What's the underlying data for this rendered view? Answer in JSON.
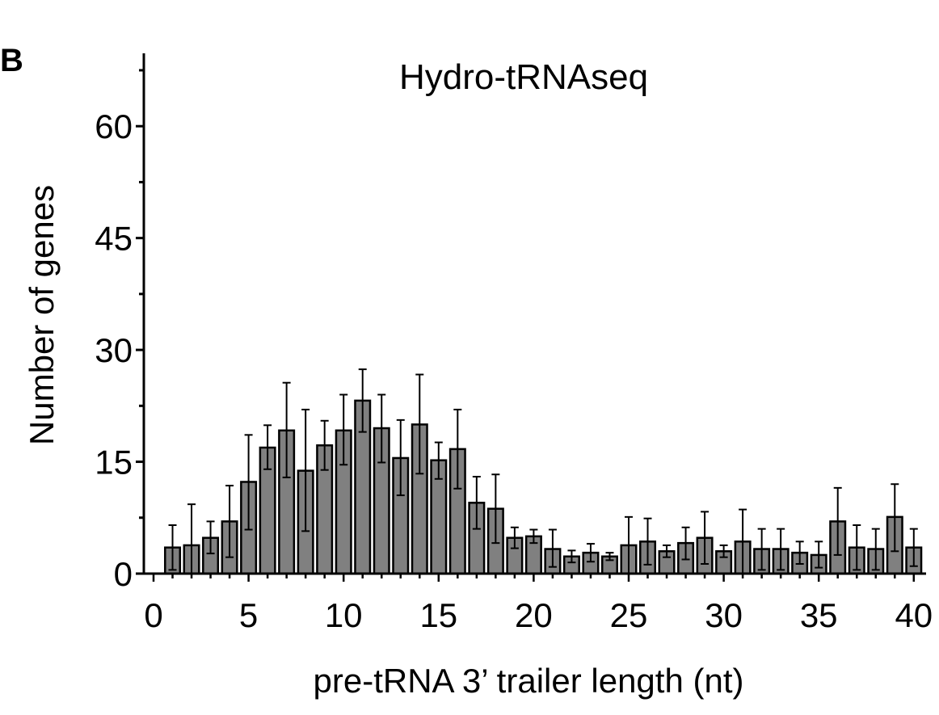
{
  "panel_label": "B",
  "chart_data": {
    "type": "bar",
    "title": "Hydro-tRNAseq",
    "xlabel": "pre-tRNA 3’ trailer length (nt)",
    "ylabel": "Number of genes",
    "xlim": [
      0,
      40
    ],
    "ylim": [
      0,
      70
    ],
    "xticks": [
      0,
      5,
      10,
      15,
      20,
      25,
      30,
      35,
      40
    ],
    "yticks": [
      0,
      15,
      30,
      45,
      60
    ],
    "y_minor_step": 7.5,
    "grid": false,
    "legend": "none",
    "bar_color": "#808080",
    "x": [
      1,
      2,
      3,
      4,
      5,
      6,
      7,
      8,
      9,
      10,
      11,
      12,
      13,
      14,
      15,
      16,
      17,
      18,
      19,
      20,
      21,
      22,
      23,
      24,
      25,
      26,
      27,
      28,
      29,
      30,
      31,
      32,
      33,
      34,
      35,
      36,
      37,
      38,
      39,
      40
    ],
    "values": [
      3.5,
      3.8,
      4.8,
      7.0,
      12.3,
      16.9,
      19.2,
      13.8,
      17.2,
      19.2,
      23.2,
      19.5,
      15.5,
      20.0,
      15.2,
      16.7,
      9.5,
      8.7,
      4.8,
      5.0,
      3.3,
      2.3,
      2.8,
      2.3,
      3.8,
      4.3,
      3.0,
      4.1,
      4.8,
      3.0,
      4.3,
      3.3,
      3.3,
      2.8,
      2.5,
      7.0,
      3.5,
      3.3,
      7.6,
      3.5
    ],
    "errors_upper": [
      6.5,
      9.3,
      7.0,
      11.8,
      18.6,
      19.9,
      25.6,
      22.0,
      20.5,
      24.0,
      27.4,
      24.0,
      20.6,
      26.7,
      17.6,
      22.0,
      13.0,
      13.3,
      6.2,
      5.9,
      5.9,
      3.1,
      4.0,
      2.8,
      7.6,
      7.4,
      3.8,
      6.2,
      8.3,
      3.8,
      8.6,
      6.0,
      6.0,
      4.3,
      4.3,
      11.5,
      6.5,
      6.0,
      12.0,
      6.0
    ],
    "errors_lower": [
      0.5,
      0.0,
      2.7,
      2.2,
      5.9,
      14.0,
      12.9,
      5.7,
      13.9,
      14.6,
      19.0,
      14.9,
      10.5,
      13.4,
      12.7,
      11.4,
      6.0,
      4.1,
      3.4,
      4.1,
      0.9,
      1.5,
      1.6,
      1.8,
      0.0,
      1.2,
      2.2,
      1.9,
      1.3,
      2.2,
      0.0,
      0.5,
      0.5,
      1.3,
      0.8,
      2.5,
      0.5,
      0.5,
      3.0,
      1.0
    ]
  }
}
